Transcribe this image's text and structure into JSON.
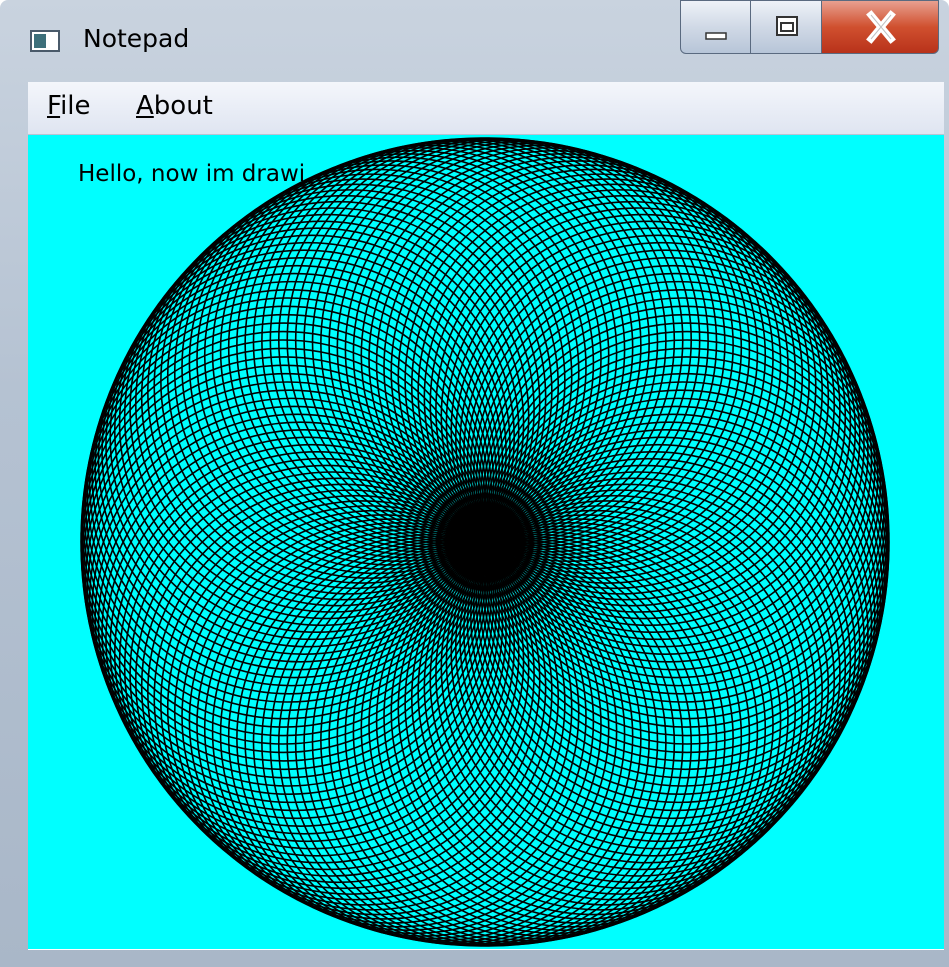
{
  "window": {
    "title": "Notepad"
  },
  "menu": [
    "File",
    "About"
  ],
  "content": {
    "text": "Hello, now im drawi"
  }
}
